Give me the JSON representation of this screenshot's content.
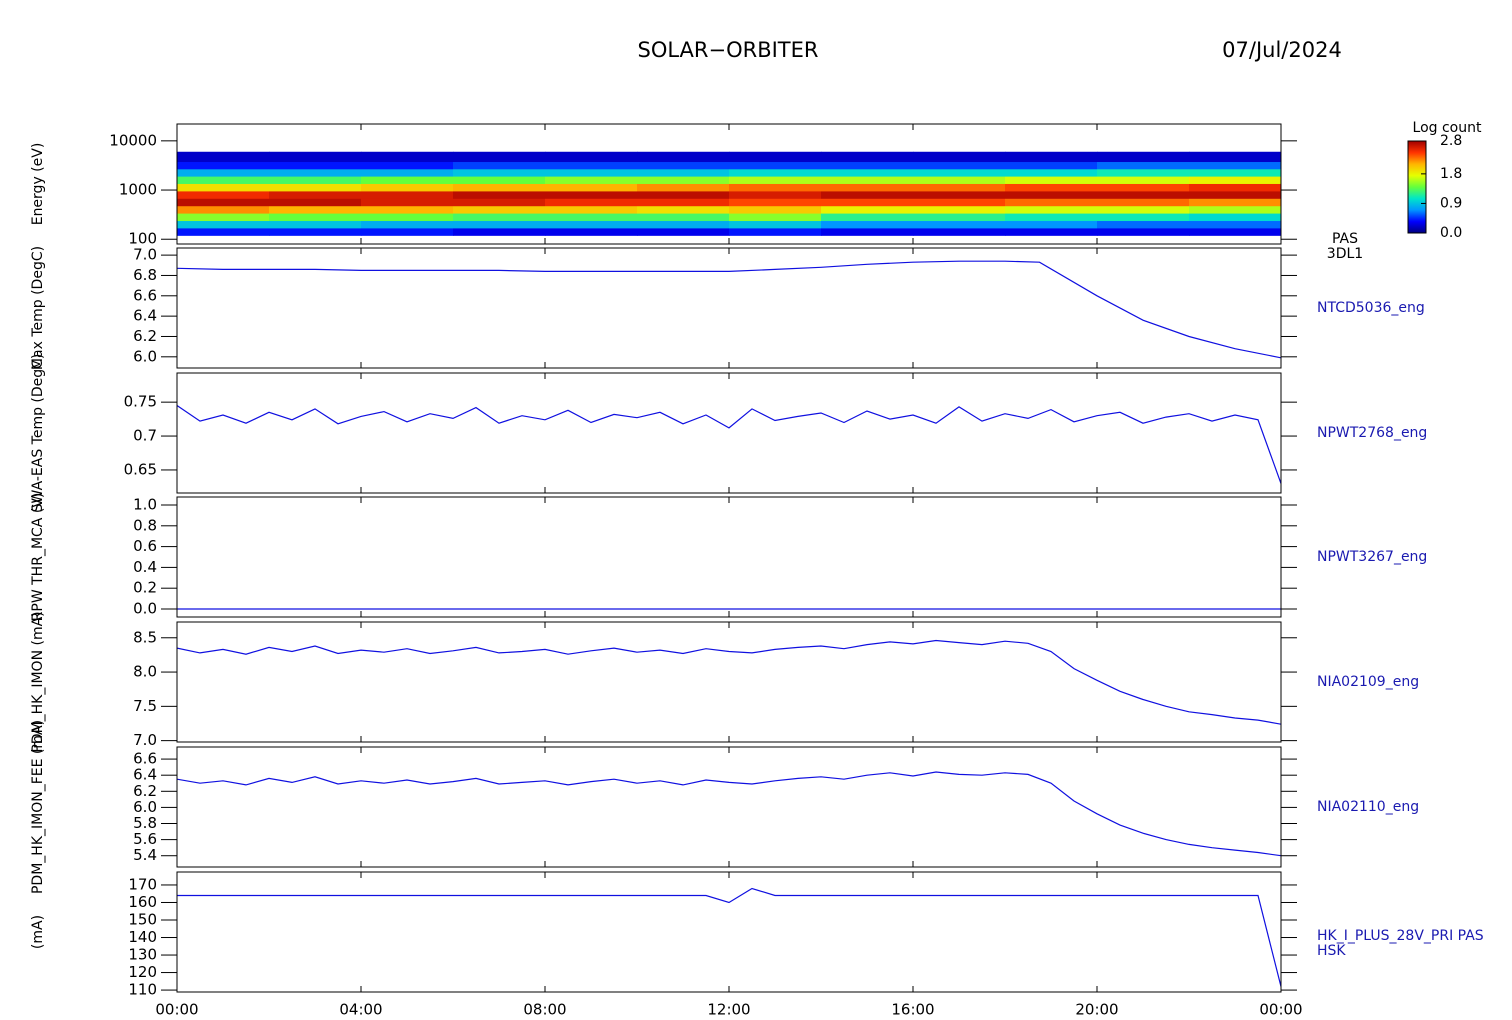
{
  "title": "SOLAR−ORBITER",
  "date": "07/Jul/2024",
  "time_axis": {
    "xlim": [
      0,
      24
    ],
    "xticks": [
      {
        "value": 0,
        "label": "00:00"
      },
      {
        "value": 4,
        "label": "04:00"
      },
      {
        "value": 8,
        "label": "08:00"
      },
      {
        "value": 12,
        "label": "12:00"
      },
      {
        "value": 16,
        "label": "16:00"
      },
      {
        "value": 20,
        "label": "20:00"
      },
      {
        "value": 24,
        "label": "00:00"
      }
    ]
  },
  "colorbar": {
    "title": "Log count",
    "clim": [
      0,
      2.8
    ],
    "colorscale": [
      "#000080",
      "#0000ff",
      "#0096ff",
      "#00e6c8",
      "#64ff3c",
      "#e6ff00",
      "#ffb400",
      "#ff3200",
      "#a00000"
    ],
    "ticks": [
      {
        "value": 0,
        "label": "0.0"
      },
      0.9,
      1.8,
      2.8
    ]
  },
  "chart_data": [
    {
      "type": "heatmap",
      "ylabel": "Energy (eV)",
      "labels": [
        "PAS",
        "3DL1"
      ],
      "log": true,
      "ylim": [
        80,
        22000
      ],
      "yticks": [
        10000,
        1000,
        100
      ],
      "x": [
        0,
        2,
        4,
        6,
        8,
        10,
        12,
        14,
        16,
        18,
        20,
        22
      ],
      "bins": [
        120,
        170,
        240,
        340,
        480,
        680,
        960,
        1360,
        1920,
        2700,
        3800,
        6000
      ],
      "values": [
        [
          0.4,
          0.9,
          1.5,
          2.2,
          2.7,
          2.5,
          1.9,
          1.3,
          0.8,
          0.4,
          0.2
        ],
        [
          0.4,
          0.9,
          1.4,
          2.1,
          2.7,
          2.6,
          1.9,
          1.3,
          0.8,
          0.4,
          0.2
        ],
        [
          0.4,
          0.8,
          1.4,
          2.1,
          2.6,
          2.6,
          2.0,
          1.4,
          0.8,
          0.4,
          0.2
        ],
        [
          0.3,
          0.8,
          1.3,
          2.0,
          2.6,
          2.7,
          2.1,
          1.4,
          0.9,
          0.5,
          0.2
        ],
        [
          0.3,
          0.8,
          1.3,
          2.0,
          2.5,
          2.7,
          2.1,
          1.5,
          0.9,
          0.5,
          0.2
        ],
        [
          0.3,
          0.8,
          1.3,
          1.9,
          2.5,
          2.7,
          2.2,
          1.5,
          0.9,
          0.5,
          0.2
        ],
        [
          0.4,
          0.9,
          1.5,
          2.0,
          2.4,
          2.6,
          2.3,
          1.6,
          1.0,
          0.5,
          0.2
        ],
        [
          0.3,
          0.7,
          1.2,
          1.8,
          2.4,
          2.7,
          2.3,
          1.6,
          1.0,
          0.5,
          0.2
        ],
        [
          0.3,
          0.7,
          1.2,
          1.8,
          2.4,
          2.7,
          2.3,
          1.6,
          1.0,
          0.5,
          0.2
        ],
        [
          0.3,
          0.7,
          1.1,
          1.7,
          2.3,
          2.7,
          2.4,
          1.7,
          1.0,
          0.5,
          0.2
        ],
        [
          0.3,
          0.6,
          1.1,
          1.7,
          2.3,
          2.7,
          2.4,
          1.7,
          1.1,
          0.6,
          0.2
        ],
        [
          0.3,
          0.6,
          1.0,
          1.6,
          2.2,
          2.7,
          2.5,
          1.8,
          1.1,
          0.6,
          0.2
        ]
      ]
    },
    {
      "type": "line",
      "ylabel": "Max Temp (DegC)",
      "labels": [
        "NTCD5036_eng"
      ],
      "color": "#1010e0",
      "ylim": [
        5.89,
        7.07
      ],
      "yticks": [
        {
          "value": 7,
          "label": "7.0"
        },
        6.8,
        6.6,
        6.4,
        6.2,
        {
          "value": 6,
          "label": "6.0"
        }
      ],
      "x": [
        0,
        1,
        2,
        3,
        4,
        5,
        6,
        7,
        8,
        9,
        10,
        11,
        12,
        13,
        14,
        15,
        16,
        17,
        18,
        18.75,
        20,
        21,
        22,
        23,
        24
      ],
      "values": [
        6.87,
        6.86,
        6.86,
        6.86,
        6.85,
        6.85,
        6.85,
        6.85,
        6.84,
        6.84,
        6.84,
        6.84,
        6.84,
        6.86,
        6.88,
        6.91,
        6.93,
        6.94,
        6.94,
        6.93,
        6.6,
        6.36,
        6.2,
        6.08,
        5.99
      ]
    },
    {
      "type": "line",
      "ylabel": "SWA-EAS Temp (DegC)",
      "labels": [
        "NPWT2768_eng"
      ],
      "color": "#1010e0",
      "ylim": [
        0.616,
        0.793
      ],
      "yticks": [
        0.75,
        0.7,
        0.65
      ],
      "x": [
        0,
        0.5,
        1,
        1.5,
        2,
        2.5,
        3,
        3.5,
        4,
        4.5,
        5,
        5.5,
        6,
        6.5,
        7,
        7.5,
        8,
        8.5,
        9,
        9.5,
        10,
        10.5,
        11,
        11.5,
        12,
        12.5,
        13,
        13.5,
        14,
        14.5,
        15,
        15.5,
        16,
        16.5,
        17,
        17.5,
        18,
        18.5,
        19,
        19.5,
        20,
        20.5,
        21,
        21.5,
        22,
        22.5,
        23,
        23.5,
        24
      ],
      "values": [
        0.745,
        0.722,
        0.731,
        0.719,
        0.735,
        0.724,
        0.74,
        0.718,
        0.729,
        0.736,
        0.721,
        0.733,
        0.726,
        0.742,
        0.719,
        0.73,
        0.724,
        0.738,
        0.72,
        0.732,
        0.727,
        0.735,
        0.718,
        0.731,
        0.712,
        0.74,
        0.723,
        0.729,
        0.734,
        0.72,
        0.737,
        0.725,
        0.731,
        0.719,
        0.743,
        0.722,
        0.733,
        0.726,
        0.739,
        0.721,
        0.73,
        0.735,
        0.719,
        0.728,
        0.733,
        0.722,
        0.731,
        0.724,
        0.63
      ]
    },
    {
      "type": "line",
      "ylabel": "RPW THR_MCA (V)",
      "labels": [
        "NPWT3267_eng"
      ],
      "color": "#1010e0",
      "ylim": [
        -0.077,
        1.077
      ],
      "yticks": [
        {
          "value": 1,
          "label": "1.0"
        },
        0.8,
        0.6,
        0.4,
        0.2,
        {
          "value": 0,
          "label": "0.0"
        }
      ],
      "x": [
        0,
        24
      ],
      "values": [
        0,
        0
      ]
    },
    {
      "type": "line",
      "ylabel": "PDM_HK_IMON (mA)",
      "labels": [
        "NIA02109_eng"
      ],
      "color": "#1010e0",
      "ylim": [
        6.98,
        8.73
      ],
      "yticks": [
        8.5,
        {
          "value": 8,
          "label": "8.0"
        },
        7.5,
        {
          "value": 7,
          "label": "7.0"
        }
      ],
      "x": [
        0,
        0.5,
        1,
        1.5,
        2,
        2.5,
        3,
        3.5,
        4,
        4.5,
        5,
        5.5,
        6,
        6.5,
        7,
        7.5,
        8,
        8.5,
        9,
        9.5,
        10,
        10.5,
        11,
        11.5,
        12,
        12.5,
        13,
        13.5,
        14,
        14.5,
        15,
        15.5,
        16,
        16.5,
        17,
        17.5,
        18,
        18.5,
        19,
        19.5,
        20,
        20.5,
        21,
        21.5,
        22,
        22.5,
        23,
        23.5,
        24
      ],
      "values": [
        8.35,
        8.28,
        8.33,
        8.26,
        8.36,
        8.3,
        8.38,
        8.27,
        8.32,
        8.29,
        8.34,
        8.27,
        8.31,
        8.36,
        8.28,
        8.3,
        8.33,
        8.26,
        8.31,
        8.35,
        8.29,
        8.32,
        8.27,
        8.34,
        8.3,
        8.28,
        8.33,
        8.36,
        8.38,
        8.34,
        8.4,
        8.44,
        8.41,
        8.46,
        8.43,
        8.4,
        8.45,
        8.42,
        8.3,
        8.05,
        7.88,
        7.72,
        7.6,
        7.5,
        7.42,
        7.38,
        7.33,
        7.3,
        7.24
      ]
    },
    {
      "type": "line",
      "ylabel": "PDM_HK_IMON_FEE (mA)",
      "labels": [
        "NIA02110_eng"
      ],
      "color": "#1010e0",
      "ylim": [
        5.26,
        6.75
      ],
      "yticks": [
        6.6,
        6.4,
        6.2,
        {
          "value": 6,
          "label": "6.0"
        },
        5.8,
        5.6,
        5.4
      ],
      "x": [
        0,
        0.5,
        1,
        1.5,
        2,
        2.5,
        3,
        3.5,
        4,
        4.5,
        5,
        5.5,
        6,
        6.5,
        7,
        7.5,
        8,
        8.5,
        9,
        9.5,
        10,
        10.5,
        11,
        11.5,
        12,
        12.5,
        13,
        13.5,
        14,
        14.5,
        15,
        15.5,
        16,
        16.5,
        17,
        17.5,
        18,
        18.5,
        19,
        19.5,
        20,
        20.5,
        21,
        21.5,
        22,
        22.5,
        23,
        23.5,
        24
      ],
      "values": [
        6.35,
        6.3,
        6.33,
        6.28,
        6.36,
        6.31,
        6.38,
        6.29,
        6.33,
        6.3,
        6.34,
        6.29,
        6.32,
        6.36,
        6.29,
        6.31,
        6.33,
        6.28,
        6.32,
        6.35,
        6.3,
        6.33,
        6.28,
        6.34,
        6.31,
        6.29,
        6.33,
        6.36,
        6.38,
        6.35,
        6.4,
        6.43,
        6.39,
        6.44,
        6.41,
        6.4,
        6.43,
        6.41,
        6.3,
        6.08,
        5.92,
        5.78,
        5.68,
        5.6,
        5.54,
        5.5,
        5.47,
        5.44,
        5.4
      ]
    },
    {
      "type": "line",
      "ylabel": "(mA)",
      "labels": [
        "HK_I_PLUS_28V_PRI PAS",
        "HSK"
      ],
      "color": "#1010e0",
      "ylim": [
        108.9,
        177.4
      ],
      "yticks": [
        170,
        160,
        150,
        140,
        130,
        120,
        110
      ],
      "x": [
        0,
        0.5,
        1,
        1.5,
        2,
        2.5,
        3,
        3.5,
        4,
        4.5,
        5,
        5.5,
        6,
        6.5,
        7,
        7.5,
        8,
        8.5,
        9,
        9.5,
        10,
        10.5,
        11,
        11.5,
        12,
        12.5,
        13,
        13.5,
        14,
        14.5,
        15,
        15.5,
        16,
        16.5,
        17,
        17.5,
        18,
        18.5,
        19,
        19.5,
        20,
        20.5,
        21,
        21.5,
        22,
        22.5,
        23,
        23.5,
        24
      ],
      "values": [
        164,
        164,
        164,
        164,
        164,
        164,
        164,
        164,
        164,
        164,
        164,
        164,
        164,
        164,
        164,
        164,
        164,
        164,
        164,
        164,
        164,
        164,
        164,
        164,
        160,
        168,
        164,
        164,
        164,
        164,
        164,
        164,
        164,
        164,
        164,
        164,
        164,
        164,
        164,
        164,
        164,
        164,
        164,
        164,
        164,
        164,
        164,
        164,
        112
      ]
    }
  ]
}
